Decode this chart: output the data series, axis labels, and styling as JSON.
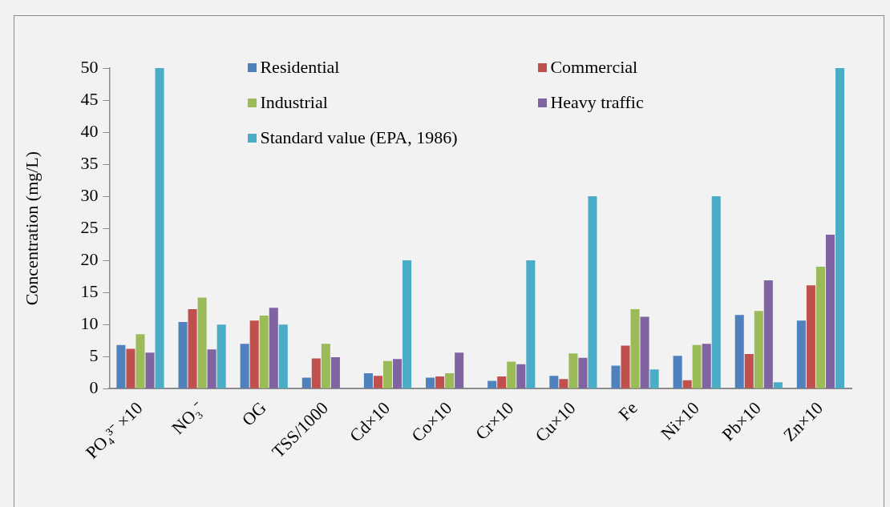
{
  "chart_data": {
    "type": "bar",
    "ylabel": "Concentration (mg/L)",
    "categories": [
      "PO₄³⁻ ×10",
      "NO₃⁻",
      "OG",
      "TSS/1000",
      "Cd×10",
      "Co×10",
      "Cr×10",
      "Cu×10",
      "Fe",
      "Ni×10",
      "Pb×10",
      "Zn×10"
    ],
    "series": [
      {
        "name": "Residential",
        "color": "#4f81bd",
        "values": [
          6.8,
          10.4,
          7.0,
          1.7,
          2.4,
          1.7,
          1.2,
          2.0,
          3.6,
          5.1,
          11.5,
          10.6
        ]
      },
      {
        "name": "Commercial",
        "color": "#c0504d",
        "values": [
          6.2,
          12.4,
          10.6,
          4.7,
          2.0,
          1.9,
          1.9,
          1.5,
          6.7,
          1.3,
          5.4,
          16.1
        ]
      },
      {
        "name": "Industrial",
        "color": "#9bbb59",
        "values": [
          8.5,
          14.2,
          11.4,
          7.0,
          4.3,
          2.4,
          4.2,
          5.5,
          12.4,
          6.8,
          12.1,
          19.0
        ]
      },
      {
        "name": "Heavy traffic",
        "color": "#8064a2",
        "values": [
          5.6,
          6.1,
          12.6,
          4.9,
          4.6,
          5.6,
          3.8,
          4.8,
          11.2,
          7.0,
          16.9,
          24.0
        ]
      },
      {
        "name": "Standard value (EPA, 1986)",
        "color": "#4bacc6",
        "values": [
          50,
          10,
          10,
          0,
          20,
          0,
          20,
          30,
          3,
          30,
          1,
          50
        ]
      }
    ],
    "ylim": [
      0,
      50
    ],
    "yticks": [
      0,
      5,
      10,
      15,
      20,
      25,
      30,
      35,
      40,
      45,
      50
    ],
    "grid": false,
    "legend": "top"
  }
}
